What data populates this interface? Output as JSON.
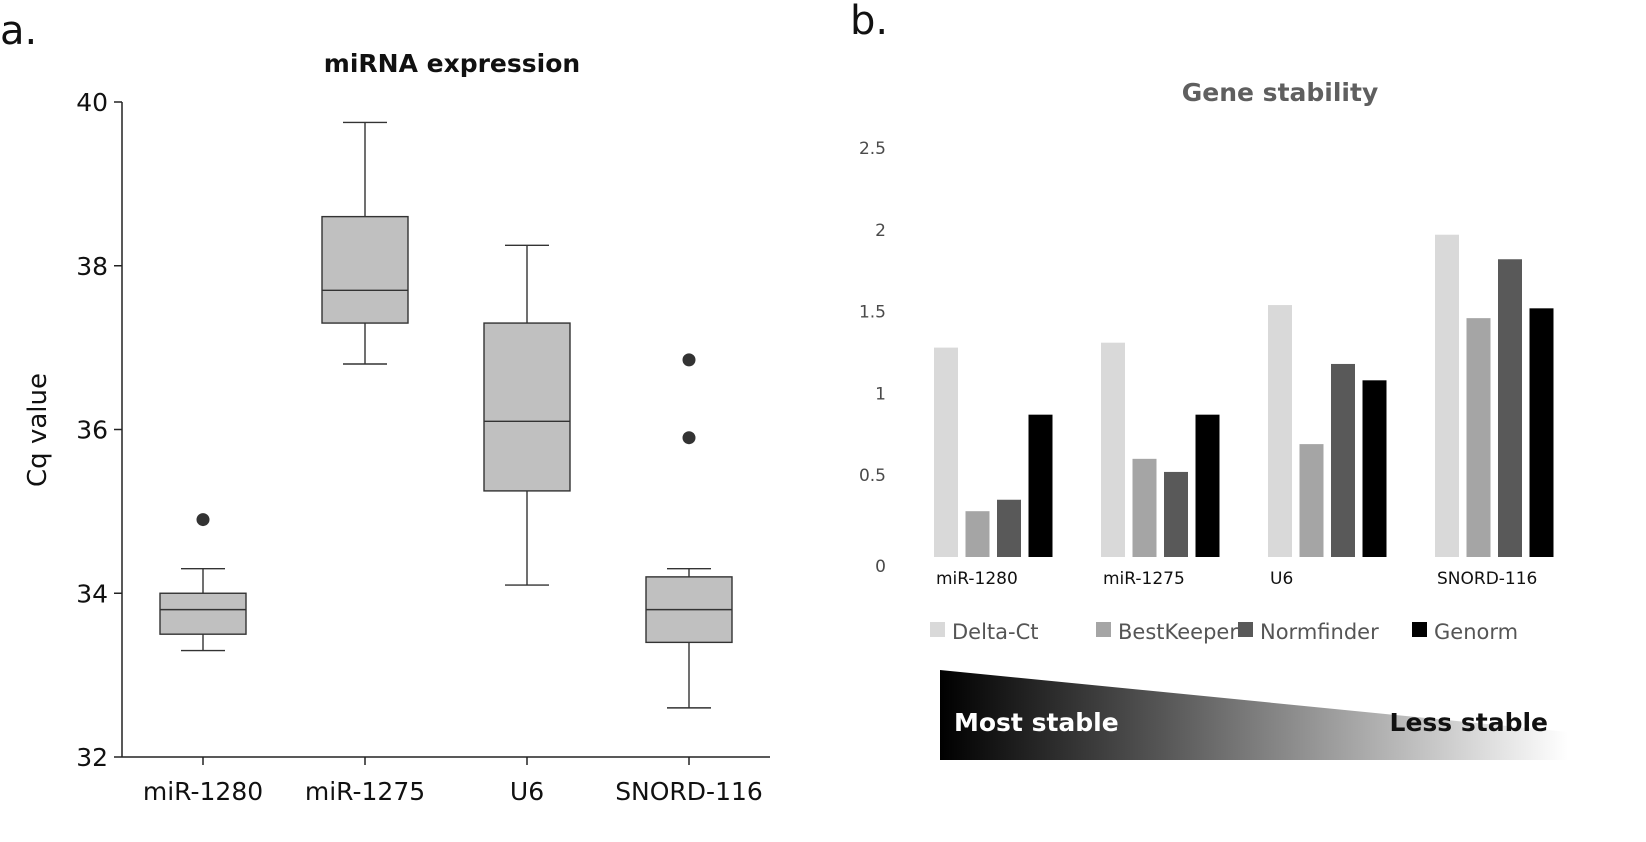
{
  "chart_data": [
    {
      "type": "boxplot",
      "panel_label": "a.",
      "title": "miRNA expression",
      "xlabel": "",
      "ylabel": "Cq value",
      "ylim": [
        32,
        40
      ],
      "yticks": [
        32,
        34,
        36,
        38,
        40
      ],
      "categories": [
        "miR-1280",
        "miR-1275",
        "U6",
        "SNORD-116"
      ],
      "boxes": [
        {
          "name": "miR-1280",
          "min": 33.3,
          "q1": 33.5,
          "median": 33.8,
          "q3": 34.0,
          "max": 34.3,
          "outliers": [
            34.9
          ]
        },
        {
          "name": "miR-1275",
          "min": 36.8,
          "q1": 37.3,
          "median": 37.7,
          "q3": 38.6,
          "max": 39.75,
          "outliers": []
        },
        {
          "name": "U6",
          "min": 34.1,
          "q1": 35.25,
          "median": 36.1,
          "q3": 37.3,
          "max": 38.25,
          "outliers": []
        },
        {
          "name": "SNORD-116",
          "min": 32.6,
          "q1": 33.4,
          "median": 33.8,
          "q3": 34.2,
          "max": 34.3,
          "outliers": [
            35.9,
            36.85
          ]
        }
      ],
      "box_color": "#c0c0c0"
    },
    {
      "type": "bar",
      "panel_label": "b.",
      "title": "Gene stability",
      "xlabel": "",
      "ylabel": "",
      "ylim": [
        0,
        2.5
      ],
      "yticks": [
        {
          "value": 0,
          "label": "0"
        },
        {
          "value": 0.5,
          "label": "0.5"
        },
        {
          "value": 1,
          "label": "1"
        },
        {
          "value": 1.5,
          "label": "1.5"
        },
        {
          "value": 2,
          "label": "2"
        },
        {
          "value": 2.5,
          "label": "2.5"
        }
      ],
      "categories": [
        "miR-1280",
        "miR-1275",
        "U6",
        "SNORD-116"
      ],
      "series": [
        {
          "name": "Delta-Ct",
          "color": "#d9d9d9",
          "values": [
            1.28,
            1.31,
            1.54,
            1.97
          ]
        },
        {
          "name": "BestKeeper",
          "color": "#a5a5a5",
          "values": [
            0.28,
            0.6,
            0.69,
            1.46
          ]
        },
        {
          "name": "Normfinder",
          "color": "#595959",
          "values": [
            0.35,
            0.52,
            1.18,
            1.82
          ]
        },
        {
          "name": "Genorm",
          "color": "#000000",
          "values": [
            0.87,
            0.87,
            1.08,
            1.52
          ]
        }
      ],
      "legend_position": "bottom",
      "grid": false
    }
  ],
  "stability_scale": {
    "left_label": "Most stable",
    "right_label": "Less stable",
    "start_color": "#000000",
    "end_color": "#ffffff"
  }
}
